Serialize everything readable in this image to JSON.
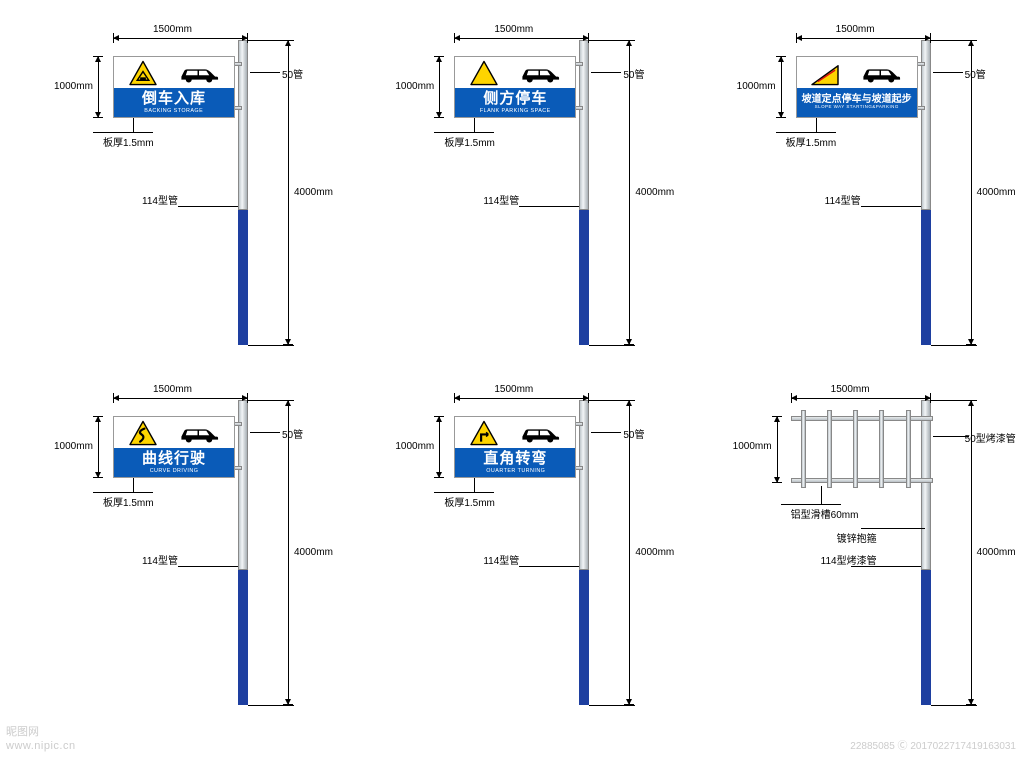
{
  "colors": {
    "blue": "#0a5bb8",
    "pole_base": "#1e3fa0",
    "yellow": "#fed400",
    "tri_border": "#000000",
    "red_cross": "#d11",
    "car": "#000000",
    "background": "#ffffff",
    "dim": "#000000",
    "watermark": "#cccccc"
  },
  "dimensions": {
    "width_top": "1500mm",
    "height_sign": "1000mm",
    "pole_height": "4000mm",
    "support_tube": "50管",
    "plate_thickness": "板厚1.5mm",
    "pole_tube": "114型管"
  },
  "signs": [
    {
      "title": "倒车入库",
      "subtitle": "BACKING STORAGE",
      "icon": "garage"
    },
    {
      "title": "侧方停车",
      "subtitle": "FLANK PARKING SPACE",
      "icon": "tri_blank"
    },
    {
      "title": "坡道定点停车与坡道起步",
      "subtitle": "SLOPE WAY STARTING&PARKING",
      "icon": "slope",
      "small": true
    },
    {
      "title": "曲线行驶",
      "subtitle": "CURVE DRIVING",
      "icon": "curve"
    },
    {
      "title": "直角转弯",
      "subtitle": "OUARTER TURNING",
      "icon": "rightangle"
    }
  ],
  "struct": {
    "labels": {
      "tube": "50型烤漆管",
      "slot": "铝型滑槽60mm",
      "clamp": "镀锌抱箍",
      "maintube": "114型烤漆管"
    }
  },
  "watermark": {
    "site": "昵图网",
    "url": "www.nipic.cn",
    "meta": "22885085 Ⓒ 2017022717419163031"
  }
}
